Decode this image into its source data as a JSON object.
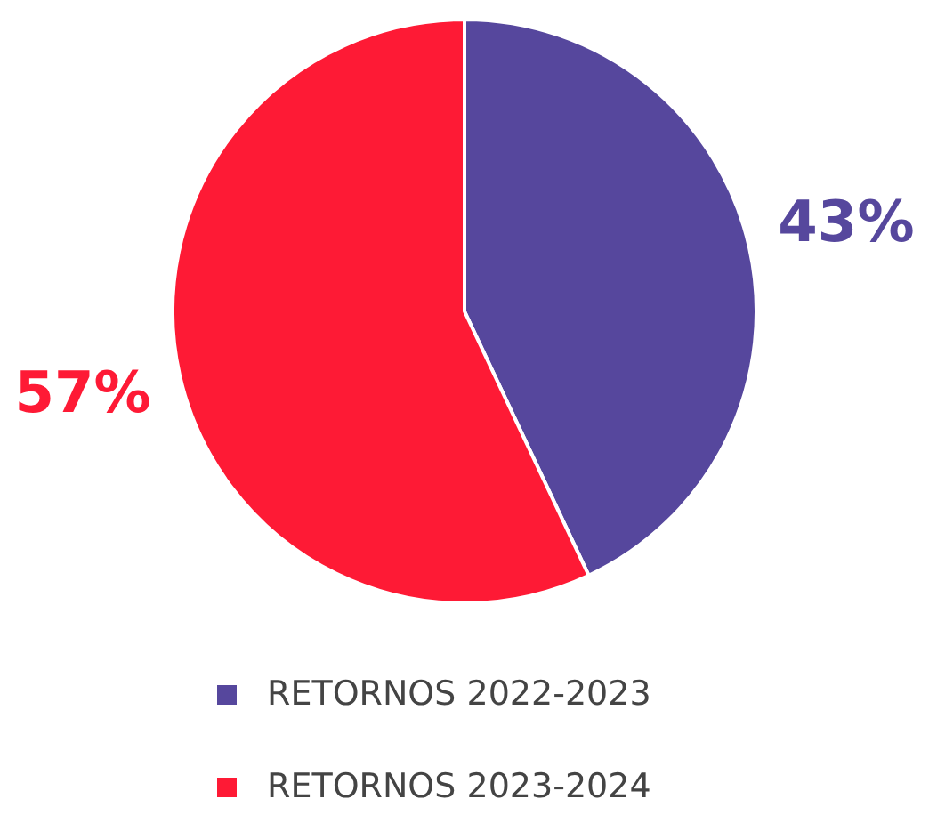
{
  "chart_data": {
    "type": "pie",
    "categories": [
      "RETORNOS 2022-2023",
      "RETORNOS 2023-2024"
    ],
    "values": [
      43,
      57
    ],
    "colors": [
      "#56479d",
      "#fe1a35"
    ],
    "value_labels": [
      "43%",
      "57%"
    ],
    "legend": "bottom"
  }
}
